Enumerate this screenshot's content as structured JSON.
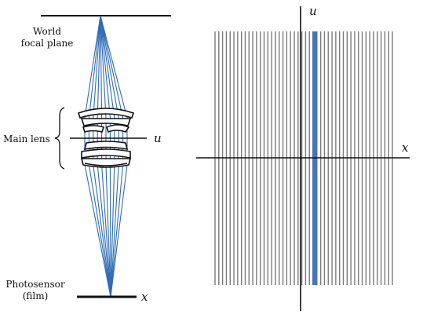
{
  "left_diagram": {
    "focal_plane_label": [
      "World",
      "focal plane"
    ],
    "lens_label": "Main lens",
    "lens_axis_label": "u",
    "sensor_label": [
      "Photosensor",
      "(film)"
    ],
    "sensor_axis_label": "x",
    "ray_color": "#2f6db5"
  },
  "right_diagram": {
    "vertical_axis_label": "u",
    "horizontal_axis_label": "x",
    "line_color": "#7a7a7a",
    "highlight_color": "#4a74b6"
  }
}
